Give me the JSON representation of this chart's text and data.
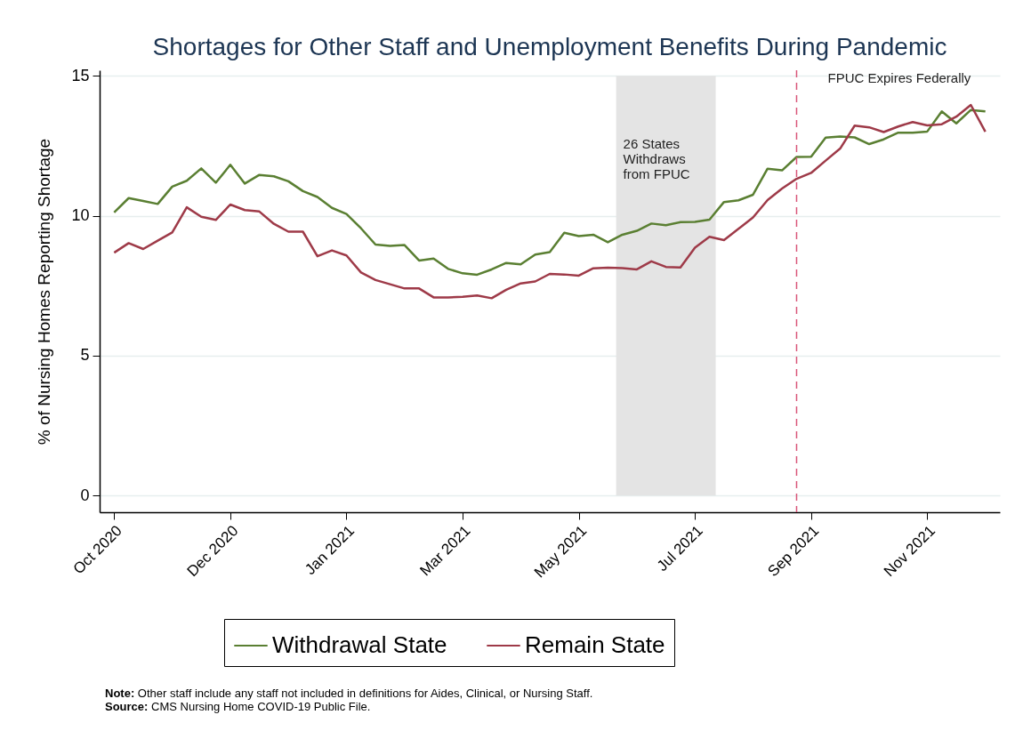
{
  "chart_data": {
    "type": "line",
    "title": "Shortages for Other Staff and Unemployment Benefits During Pandemic",
    "ylabel": "% of Nursing Homes Reporting Shortage",
    "x": [
      "2020-10-11",
      "2020-10-18",
      "2020-10-25",
      "2020-11-01",
      "2020-11-08",
      "2020-11-15",
      "2020-11-22",
      "2020-11-29",
      "2020-12-06",
      "2020-12-13",
      "2020-12-20",
      "2020-12-27",
      "2021-01-03",
      "2021-01-10",
      "2021-01-17",
      "2021-01-24",
      "2021-01-31",
      "2021-02-07",
      "2021-02-14",
      "2021-02-21",
      "2021-02-28",
      "2021-03-07",
      "2021-03-14",
      "2021-03-21",
      "2021-03-28",
      "2021-04-04",
      "2021-04-11",
      "2021-04-18",
      "2021-04-25",
      "2021-05-02",
      "2021-05-09",
      "2021-05-16",
      "2021-05-23",
      "2021-05-30",
      "2021-06-06",
      "2021-06-13",
      "2021-06-20",
      "2021-06-27",
      "2021-07-04",
      "2021-07-11",
      "2021-07-18",
      "2021-07-25",
      "2021-08-01",
      "2021-08-08",
      "2021-08-15",
      "2021-08-22",
      "2021-08-29",
      "2021-09-05",
      "2021-09-12",
      "2021-09-19",
      "2021-09-26",
      "2021-10-03",
      "2021-10-10",
      "2021-10-17",
      "2021-10-24",
      "2021-10-31",
      "2021-11-07",
      "2021-11-14",
      "2021-11-21",
      "2021-11-28",
      "2021-12-05"
    ],
    "series": [
      {
        "name": "Withdrawal State",
        "color": "#5a7f32",
        "values": [
          10.12,
          10.63,
          10.53,
          10.42,
          11.04,
          11.25,
          11.69,
          11.18,
          11.82,
          11.15,
          11.46,
          11.41,
          11.23,
          10.88,
          10.67,
          10.28,
          10.06,
          9.55,
          8.97,
          8.92,
          8.95,
          8.4,
          8.47,
          8.1,
          7.94,
          7.89,
          8.08,
          8.31,
          8.26,
          8.61,
          8.7,
          9.39,
          9.27,
          9.32,
          9.05,
          9.32,
          9.46,
          9.72,
          9.66,
          9.77,
          9.78,
          9.86,
          10.49,
          10.55,
          10.75,
          11.68,
          11.62,
          12.1,
          12.11,
          12.79,
          12.83,
          12.8,
          12.56,
          12.73,
          12.97,
          12.97,
          13.01,
          13.73,
          13.3,
          13.78,
          13.73
        ]
      },
      {
        "name": "Remain State",
        "color": "#9e3a48",
        "values": [
          8.68,
          9.02,
          8.81,
          9.11,
          9.4,
          10.3,
          9.96,
          9.85,
          10.4,
          10.2,
          10.15,
          9.71,
          9.43,
          9.43,
          8.55,
          8.76,
          8.58,
          7.97,
          7.7,
          7.55,
          7.4,
          7.4,
          7.08,
          7.08,
          7.1,
          7.15,
          7.05,
          7.35,
          7.58,
          7.65,
          7.92,
          7.9,
          7.86,
          8.12,
          8.14,
          8.13,
          8.08,
          8.37,
          8.17,
          8.15,
          8.86,
          9.25,
          9.13,
          9.53,
          9.94,
          10.56,
          10.97,
          11.32,
          11.53,
          11.97,
          12.4,
          13.22,
          13.16,
          12.99,
          13.19,
          13.35,
          13.23,
          13.27,
          13.54,
          13.96,
          13.0
        ]
      }
    ],
    "xlim": [
      "2020-10-04",
      "2021-12-12"
    ],
    "xticks": [
      {
        "value": "2020-10-11",
        "label": "Oct 2020"
      },
      {
        "value": "2020-12-06",
        "label": "Dec 2020"
      },
      {
        "value": "2021-01-31",
        "label": "Jan 2021"
      },
      {
        "value": "2021-03-28",
        "label": "Mar 2021"
      },
      {
        "value": "2021-05-23",
        "label": "May 2021"
      },
      {
        "value": "2021-07-18",
        "label": "Jul 2021"
      },
      {
        "value": "2021-09-12",
        "label": "Sep 2021"
      },
      {
        "value": "2021-11-07",
        "label": "Nov 2021"
      }
    ],
    "ylim": [
      -0.6,
      15.2
    ],
    "yticks": [
      0,
      5,
      10,
      15
    ],
    "grid": "y",
    "legend": "bottom",
    "line_style": "solid",
    "marker": "none",
    "bands": [
      {
        "axis": "x",
        "from": "2021-06-10",
        "to": "2021-07-28",
        "label": "26 States\nWithdraws\nfrom FPUC",
        "color": "#e4e4e4"
      }
    ],
    "ref_lines": [
      {
        "axis": "x",
        "value": "2021-09-05",
        "label": "FPUC Expires Federally",
        "color": "#d9577a",
        "line_style": "dashed"
      }
    ],
    "annotations": [
      "Note: Other staff include any staff not included in definitions for Aides, Clinical, or Nursing Staff.",
      "Source: CMS Nursing Home COVID-19 Public File."
    ]
  }
}
